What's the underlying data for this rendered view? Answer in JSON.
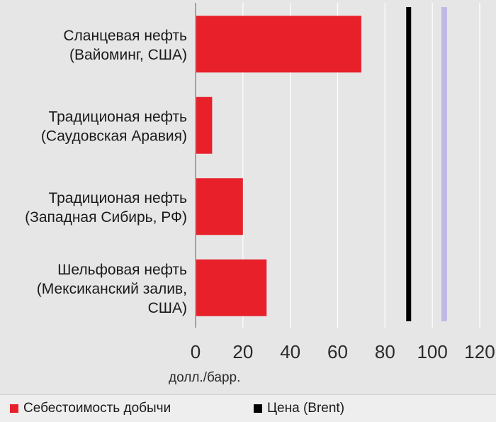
{
  "chart_data": {
    "type": "bar",
    "orientation": "horizontal",
    "categories": [
      [
        "Сланцевая нефть",
        "(Вайоминг, США)"
      ],
      [
        "Традиционая нефть",
        "(Саудовская Аравия)"
      ],
      [
        "Традиционая нефть",
        "(Западная Сибирь, РФ)"
      ],
      [
        "Шельфовая нефть",
        "(Мексиканский залив,",
        "США)"
      ]
    ],
    "series": [
      {
        "name": "Себестоимость добычи",
        "values": [
          70,
          7,
          20,
          30
        ],
        "color": "#e8202a"
      }
    ],
    "reference_lines": [
      {
        "name": "Цена (Brent)",
        "value": 90,
        "color": "#000000"
      },
      {
        "value": 105,
        "color": "#c2b8e8"
      }
    ],
    "xlim": [
      0,
      120
    ],
    "xticks": [
      0,
      20,
      40,
      60,
      80,
      100,
      120
    ],
    "xlabel": "долл./барр.",
    "grid": true,
    "legend_position": "bottom-left"
  },
  "legend": {
    "items": [
      {
        "label": "Себестоимость добычи",
        "color": "#e8202a"
      },
      {
        "label": "Цена (Brent)",
        "color": "#000000"
      }
    ]
  }
}
